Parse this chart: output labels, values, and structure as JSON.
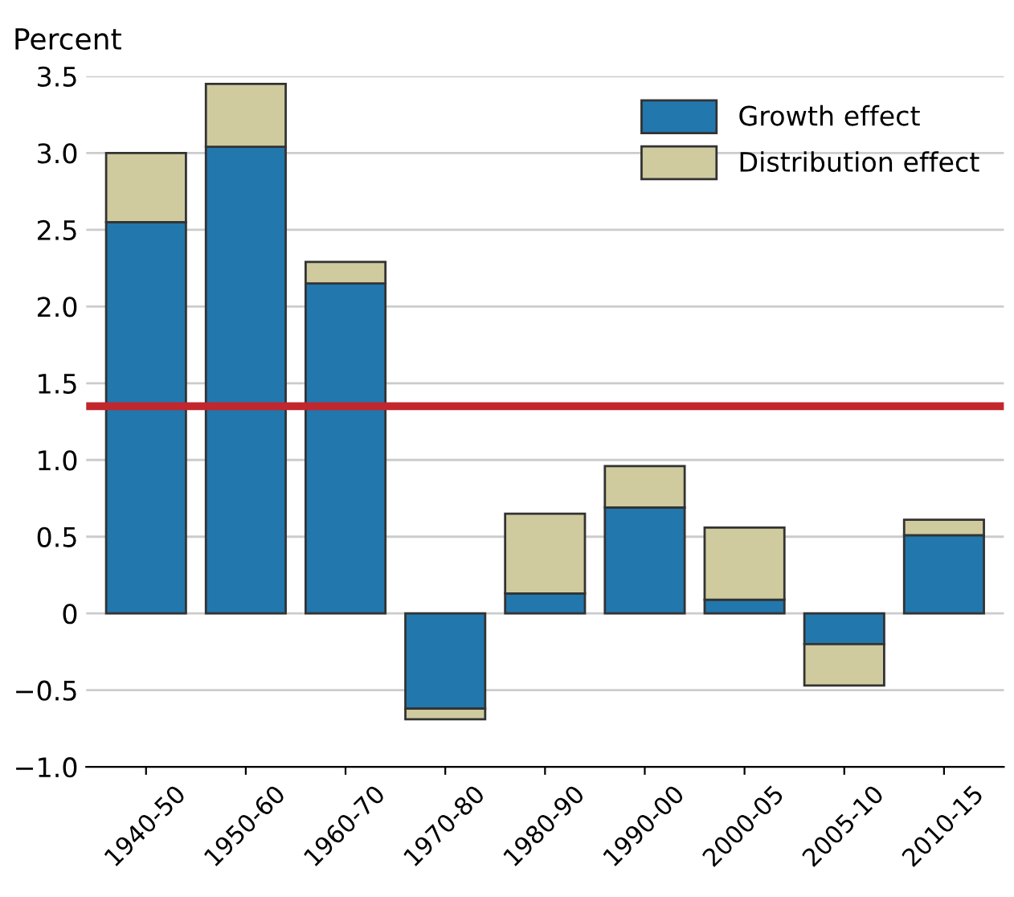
{
  "chart_data": {
    "type": "bar",
    "stacked": true,
    "ylabel": "Percent",
    "categories": [
      "1940-50",
      "1950-60",
      "1960-70",
      "1970-80",
      "1980-90",
      "1990-00",
      "2000-05",
      "2005-10",
      "2010-15"
    ],
    "series": [
      {
        "name": "Growth effect",
        "color": "#2277ad",
        "values": [
          2.55,
          3.04,
          2.15,
          -0.62,
          0.13,
          0.69,
          0.09,
          -0.2,
          0.51
        ]
      },
      {
        "name": "Distribution effect",
        "color": "#cfcb9f",
        "values": [
          0.45,
          0.41,
          0.14,
          -0.07,
          0.52,
          0.27,
          0.47,
          -0.27,
          0.1
        ]
      }
    ],
    "ylim": [
      -1.0,
      3.5
    ],
    "yticks": [
      {
        "value": -1.0,
        "label": "−1.0"
      },
      {
        "value": -0.5,
        "label": "−0.5"
      },
      0,
      {
        "value": 0.5,
        "label": "0.5"
      },
      {
        "value": 1.0,
        "label": "1.0"
      },
      {
        "value": 1.5,
        "label": "1.5"
      },
      {
        "value": 2.0,
        "label": "2.0"
      },
      {
        "value": 2.5,
        "label": "2.5"
      },
      {
        "value": 3.0,
        "label": "3.0"
      },
      {
        "value": 3.5,
        "label": "3.5"
      }
    ],
    "ref_lines": [
      {
        "axis": "y",
        "value": 1.35,
        "color": "#c1272d"
      }
    ],
    "grid": "y",
    "legend": "top right"
  }
}
